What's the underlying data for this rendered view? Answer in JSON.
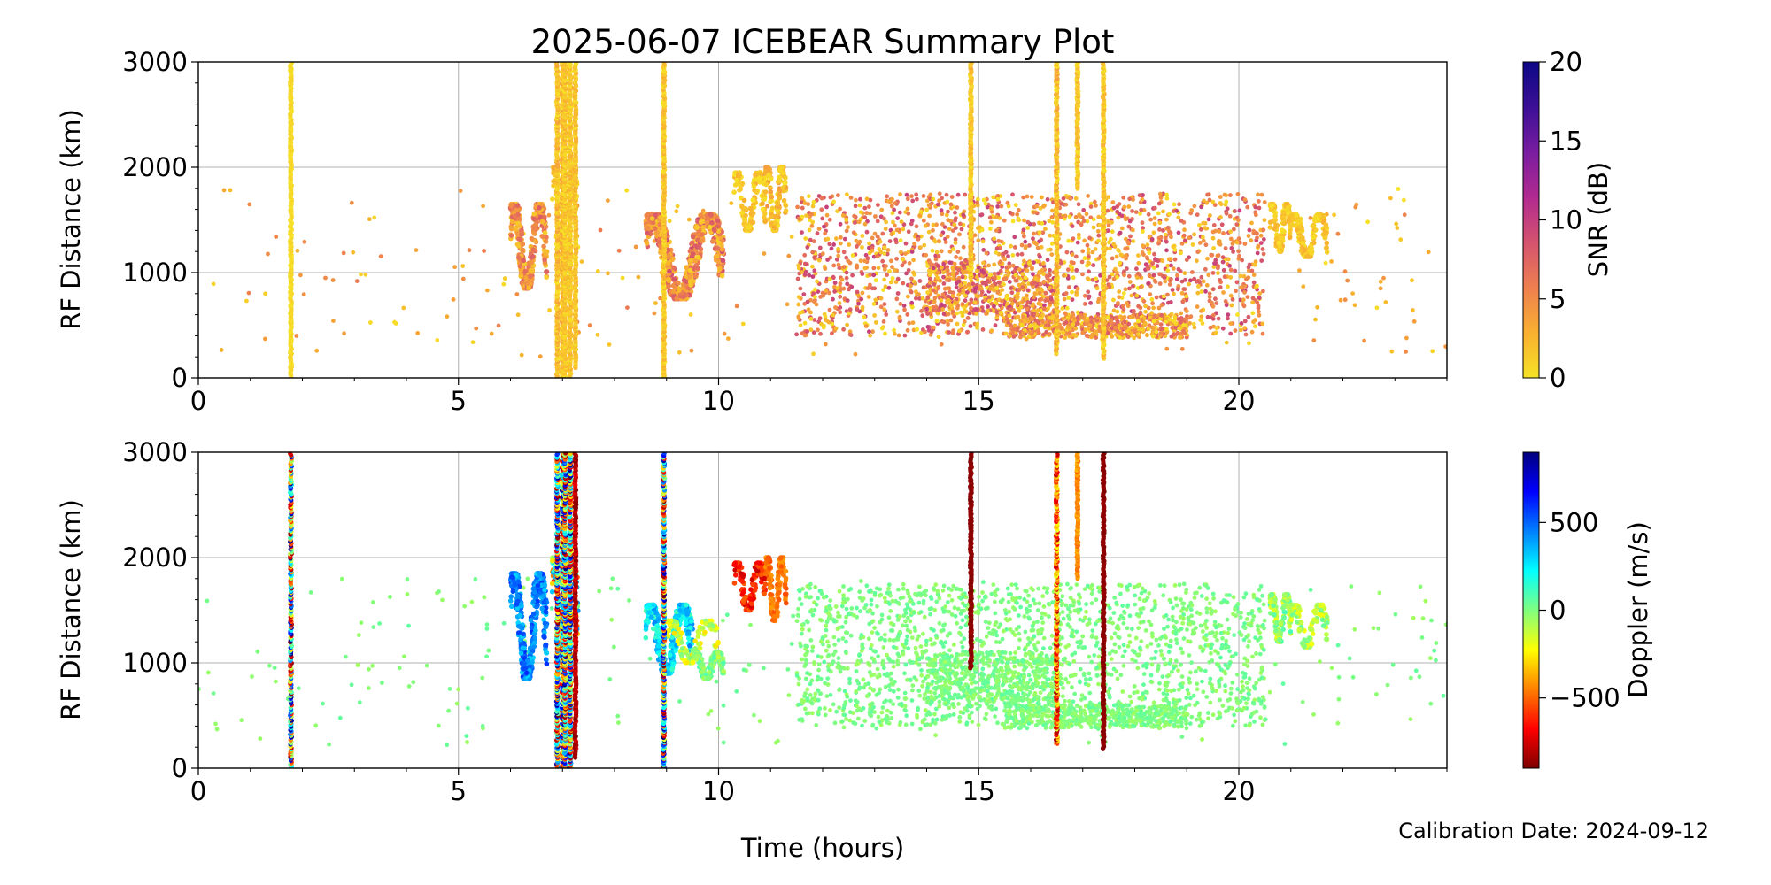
{
  "figure": {
    "title": "2025-06-07 ICEBEAR Summary Plot",
    "xlabel": "Time (hours)",
    "calibration_note": "Calibration Date: 2024-09-12"
  },
  "chart_data": [
    {
      "type": "scatter",
      "panel": "top",
      "xlabel": "",
      "ylabel": "RF Distance (km)",
      "xlim": [
        0,
        24
      ],
      "ylim": [
        0,
        3000
      ],
      "xticks": [
        0,
        5,
        10,
        15,
        20
      ],
      "yticks": [
        0,
        1000,
        2000,
        3000
      ],
      "grid": true,
      "color_variable": "SNR",
      "colorbar": {
        "label": "SNR (dB)",
        "range": [
          0,
          20
        ],
        "ticks": [
          0,
          5,
          10,
          15,
          20
        ],
        "colors": [
          "#f7e225",
          "#f8b030",
          "#ee7f50",
          "#d5536e",
          "#b12a90",
          "#7a1da0",
          "#3b0f96",
          "#0d0887"
        ]
      },
      "clusters": [
        {
          "t": [
            6.0,
            6.7
          ],
          "r": [
            850,
            1650
          ],
          "value": [
            1,
            8
          ],
          "n": 450
        },
        {
          "t": [
            6.8,
            7.3
          ],
          "r": [
            1000,
            2000
          ],
          "value": [
            0,
            4
          ],
          "n": 120
        },
        {
          "t": [
            8.6,
            10.1
          ],
          "r": [
            750,
            1550
          ],
          "value": [
            1,
            9
          ],
          "n": 700
        },
        {
          "t": [
            10.3,
            10.9
          ],
          "r": [
            1400,
            1950
          ],
          "value": [
            0,
            3
          ],
          "n": 150
        },
        {
          "t": [
            10.9,
            11.3
          ],
          "r": [
            1400,
            2000
          ],
          "value": [
            0,
            4
          ],
          "n": 150
        },
        {
          "t": [
            20.6,
            21.0
          ],
          "r": [
            1200,
            1650
          ],
          "value": [
            0,
            3
          ],
          "n": 150
        },
        {
          "t": [
            21.0,
            21.7
          ],
          "r": [
            1150,
            1550
          ],
          "value": [
            0,
            3
          ],
          "n": 150
        }
      ],
      "scatter_bands": [
        {
          "t": [
            11.5,
            20.5
          ],
          "r": [
            400,
            1750
          ],
          "value": [
            0,
            10
          ],
          "n": 1800
        },
        {
          "t": [
            14.0,
            16.5
          ],
          "r": [
            600,
            1100
          ],
          "value": [
            0,
            10
          ],
          "n": 450
        },
        {
          "t": [
            15.5,
            19.0
          ],
          "r": [
            380,
            600
          ],
          "value": [
            0,
            8
          ],
          "n": 500
        },
        {
          "t": [
            0.0,
            24.0
          ],
          "r": [
            200,
            1800
          ],
          "value": [
            0,
            6
          ],
          "n": 260
        }
      ],
      "vertical_streaks": [
        {
          "t": 1.78,
          "r": [
            0,
            3000
          ],
          "value": [
            0,
            1
          ]
        },
        {
          "t": 6.9,
          "r": [
            0,
            3000
          ],
          "value": [
            0,
            4
          ]
        },
        {
          "t": 7.0,
          "r": [
            0,
            3000
          ],
          "value": [
            0,
            4
          ]
        },
        {
          "t": 7.05,
          "r": [
            0,
            3000
          ],
          "value": [
            0,
            3
          ]
        },
        {
          "t": 7.15,
          "r": [
            0,
            3000
          ],
          "value": [
            0,
            3
          ]
        },
        {
          "t": 7.25,
          "r": [
            100,
            3000
          ],
          "value": [
            0,
            3
          ]
        },
        {
          "t": 8.95,
          "r": [
            0,
            3000
          ],
          "value": [
            0,
            3
          ]
        },
        {
          "t": 14.85,
          "r": [
            950,
            3000
          ],
          "value": [
            0,
            3
          ]
        },
        {
          "t": 16.5,
          "r": [
            230,
            3000
          ],
          "value": [
            0,
            4
          ]
        },
        {
          "t": 16.9,
          "r": [
            1800,
            3000
          ],
          "value": [
            0,
            3
          ]
        },
        {
          "t": 17.4,
          "r": [
            180,
            3000
          ],
          "value": [
            0,
            3
          ]
        }
      ]
    },
    {
      "type": "scatter",
      "panel": "bottom",
      "xlabel": "",
      "ylabel": "RF Distance (km)",
      "xlim": [
        0,
        24
      ],
      "ylim": [
        0,
        3000
      ],
      "xticks": [
        0,
        5,
        10,
        15,
        20
      ],
      "yticks": [
        0,
        1000,
        2000,
        3000
      ],
      "grid": true,
      "color_variable": "Doppler",
      "colorbar": {
        "label": "Doppler (m/s)",
        "range": [
          -900,
          900
        ],
        "ticks": [
          -500,
          0,
          500
        ],
        "colors": [
          "#7f0000",
          "#ff0000",
          "#ff8000",
          "#ffff00",
          "#80ff80",
          "#00ffff",
          "#0080ff",
          "#0000ff",
          "#00007f"
        ]
      },
      "clusters": [
        {
          "t": [
            6.0,
            6.7
          ],
          "r": [
            850,
            1850
          ],
          "value": [
            300,
            600
          ],
          "n": 450
        },
        {
          "t": [
            6.8,
            7.3
          ],
          "r": [
            1000,
            2000
          ],
          "value": [
            -600,
            500
          ],
          "n": 150
        },
        {
          "t": [
            8.6,
            9.5
          ],
          "r": [
            900,
            1550
          ],
          "value": [
            100,
            450
          ],
          "n": 400
        },
        {
          "t": [
            9.5,
            10.1
          ],
          "r": [
            850,
            1100
          ],
          "value": [
            -100,
            100
          ],
          "n": 200
        },
        {
          "t": [
            9.0,
            10.0
          ],
          "r": [
            1000,
            1400
          ],
          "value": [
            -300,
            0
          ],
          "n": 150
        },
        {
          "t": [
            10.3,
            10.9
          ],
          "r": [
            1500,
            1950
          ],
          "value": [
            -800,
            -500
          ],
          "n": 150
        },
        {
          "t": [
            10.9,
            11.3
          ],
          "r": [
            1400,
            2000
          ],
          "value": [
            -550,
            -400
          ],
          "n": 150
        },
        {
          "t": [
            20.6,
            21.0
          ],
          "r": [
            1200,
            1650
          ],
          "value": [
            -200,
            100
          ],
          "n": 150
        },
        {
          "t": [
            21.0,
            21.7
          ],
          "r": [
            1150,
            1550
          ],
          "value": [
            -250,
            50
          ],
          "n": 150
        }
      ],
      "scatter_bands": [
        {
          "t": [
            11.5,
            20.5
          ],
          "r": [
            400,
            1750
          ],
          "value": [
            -60,
            60
          ],
          "n": 1800
        },
        {
          "t": [
            14.0,
            16.5
          ],
          "r": [
            600,
            1100
          ],
          "value": [
            -60,
            60
          ],
          "n": 450
        },
        {
          "t": [
            15.5,
            19.0
          ],
          "r": [
            380,
            600
          ],
          "value": [
            -60,
            60
          ],
          "n": 500
        },
        {
          "t": [
            0.0,
            24.0
          ],
          "r": [
            200,
            1800
          ],
          "value": [
            -60,
            60
          ],
          "n": 260
        }
      ],
      "vertical_streaks": [
        {
          "t": 1.78,
          "r": [
            0,
            3000
          ],
          "value": [
            -900,
            900
          ]
        },
        {
          "t": 6.9,
          "r": [
            0,
            3000
          ],
          "value": [
            -900,
            900
          ]
        },
        {
          "t": 7.0,
          "r": [
            0,
            3000
          ],
          "value": [
            -900,
            900
          ]
        },
        {
          "t": 7.05,
          "r": [
            0,
            3000
          ],
          "value": [
            -900,
            900
          ]
        },
        {
          "t": 7.15,
          "r": [
            0,
            3000
          ],
          "value": [
            -900,
            900
          ]
        },
        {
          "t": 7.25,
          "r": [
            100,
            3000
          ],
          "value": [
            -900,
            -700
          ]
        },
        {
          "t": 8.95,
          "r": [
            0,
            3000
          ],
          "value": [
            -900,
            900
          ]
        },
        {
          "t": 14.85,
          "r": [
            950,
            3000
          ],
          "value": [
            -900,
            -850
          ]
        },
        {
          "t": 16.5,
          "r": [
            230,
            3000
          ],
          "value": [
            -850,
            -150
          ]
        },
        {
          "t": 16.9,
          "r": [
            1800,
            3000
          ],
          "value": [
            -500,
            -350
          ]
        },
        {
          "t": 17.4,
          "r": [
            180,
            3000
          ],
          "value": [
            -900,
            -850
          ]
        }
      ]
    }
  ]
}
